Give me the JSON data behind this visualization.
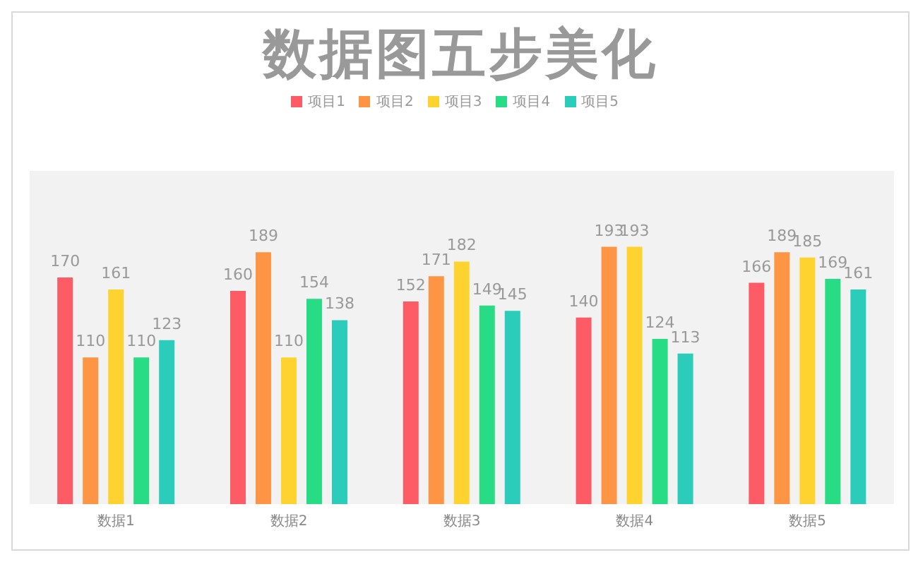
{
  "chart_data": {
    "type": "bar",
    "title": "数据图五步美化",
    "categories": [
      "数据1",
      "数据2",
      "数据3",
      "数据4",
      "数据5"
    ],
    "series": [
      {
        "name": "项目1",
        "color": "#fd5b66",
        "values": [
          170,
          160,
          152,
          140,
          166
        ]
      },
      {
        "name": "项目2",
        "color": "#fe9545",
        "values": [
          110,
          189,
          171,
          193,
          189
        ]
      },
      {
        "name": "项目3",
        "color": "#fed330",
        "values": [
          161,
          110,
          182,
          193,
          185
        ]
      },
      {
        "name": "项目4",
        "color": "#27dc84",
        "values": [
          110,
          154,
          149,
          124,
          169
        ]
      },
      {
        "name": "项目5",
        "color": "#2bcdba",
        "values": [
          123,
          138,
          145,
          113,
          161
        ]
      }
    ],
    "ylim": [
      0,
      250
    ],
    "tick_labels": "x",
    "data_labels": true,
    "grid": false,
    "legend": "top"
  }
}
